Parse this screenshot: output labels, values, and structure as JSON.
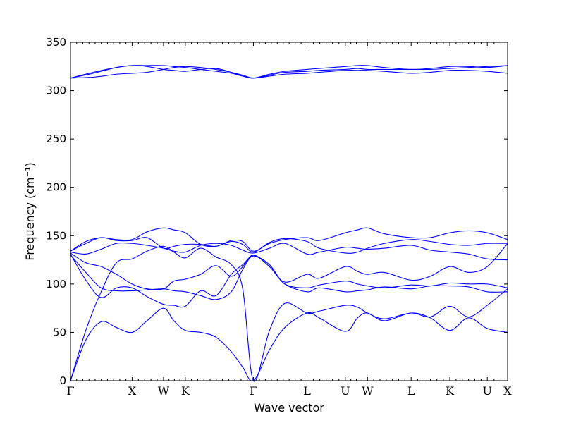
{
  "chart_data": {
    "type": "line",
    "xlabel": "Wave vector",
    "ylabel": "Frequency (cm⁻¹)",
    "ylim": [
      0,
      350
    ],
    "yticks": [
      0,
      50,
      100,
      150,
      200,
      250,
      300,
      350
    ],
    "xlim": [
      0,
      11.42
    ],
    "kpoints": [
      {
        "label": "Γ",
        "x": 0
      },
      {
        "label": "X",
        "x": 1.61
      },
      {
        "label": "W",
        "x": 2.43
      },
      {
        "label": "K",
        "x": 3.0
      },
      {
        "label": "Γ",
        "x": 4.78
      },
      {
        "label": "L",
        "x": 6.18
      },
      {
        "label": "U",
        "x": 7.18
      },
      {
        "label": "W",
        "x": 7.76
      },
      {
        "label": "L",
        "x": 8.9
      },
      {
        "label": "K",
        "x": 9.91
      },
      {
        "label": "U",
        "x": 10.89
      },
      {
        "label": "X",
        "x": 11.42
      }
    ],
    "grid": false,
    "legend": "none",
    "line_color": "#0000ff",
    "series": [
      {
        "x": [
          0,
          0.4,
          0.8,
          1.2,
          1.61,
          2.0,
          2.43,
          2.7,
          3.0,
          3.4,
          3.8,
          4.2,
          4.5,
          4.78,
          5.2,
          5.6,
          6.18,
          6.5,
          7.18,
          7.5,
          7.76,
          8.2,
          8.9,
          9.4,
          9.91,
          10.4,
          10.89,
          11.42
        ],
        "y": [
          0,
          42,
          61,
          55,
          50,
          62,
          75,
          62,
          52,
          50,
          45,
          30,
          14,
          0,
          32,
          55,
          70,
          65,
          51,
          65,
          70,
          62,
          70,
          65,
          52,
          65,
          54,
          50
        ]
      },
      {
        "x": [
          0,
          0.4,
          0.8,
          1.2,
          1.61,
          2.0,
          2.43,
          2.7,
          3.0,
          3.4,
          3.8,
          4.2,
          4.5,
          4.78,
          5.2,
          5.6,
          6.18,
          6.5,
          7.18,
          7.5,
          7.76,
          8.2,
          8.9,
          9.4,
          9.91,
          10.4,
          10.89,
          11.42
        ],
        "y": [
          0,
          52,
          92,
          122,
          126,
          134,
          139,
          133,
          127,
          137,
          128,
          120,
          95,
          0,
          52,
          80,
          70,
          72,
          78,
          76,
          70,
          64,
          70,
          66,
          77,
          66,
          78,
          95
        ]
      },
      {
        "x": [
          0,
          0.4,
          0.8,
          1.2,
          1.61,
          2.0,
          2.43,
          2.7,
          3.0,
          3.4,
          3.8,
          4.2,
          4.5,
          4.78,
          5.2,
          5.6,
          6.18,
          6.5,
          7.18,
          7.5,
          7.76,
          8.2,
          8.9,
          9.4,
          9.91,
          10.4,
          10.89,
          11.42
        ],
        "y": [
          130,
          112,
          96,
          93,
          93,
          94,
          95,
          93,
          92,
          88,
          84,
          92,
          115,
          129,
          118,
          100,
          92,
          96,
          92,
          93,
          94,
          97,
          95,
          98,
          98,
          97,
          92,
          92
        ]
      },
      {
        "x": [
          0,
          0.4,
          0.8,
          1.2,
          1.61,
          2.0,
          2.43,
          2.7,
          3.0,
          3.4,
          3.8,
          4.2,
          4.5,
          4.78,
          5.2,
          5.6,
          6.18,
          6.5,
          7.18,
          7.5,
          7.76,
          8.2,
          8.9,
          9.4,
          9.91,
          10.4,
          10.89,
          11.42
        ],
        "y": [
          131,
          104,
          86,
          96,
          96,
          87,
          79,
          78,
          77,
          93,
          88,
          110,
          120,
          129,
          120,
          100,
          96,
          99,
          103,
          100,
          98,
          96,
          99,
          98,
          101,
          100,
          100,
          96
        ]
      },
      {
        "x": [
          0,
          0.4,
          0.8,
          1.2,
          1.61,
          2.0,
          2.43,
          2.7,
          3.0,
          3.4,
          3.8,
          4.2,
          4.5,
          4.78,
          5.2,
          5.6,
          6.18,
          6.5,
          7.18,
          7.5,
          7.76,
          8.2,
          8.9,
          9.4,
          9.91,
          10.4,
          10.89,
          11.42
        ],
        "y": [
          132,
          122,
          118,
          110,
          100,
          95,
          95,
          103,
          105,
          110,
          119,
          108,
          118,
          130,
          118,
          102,
          110,
          106,
          118,
          113,
          110,
          112,
          104,
          108,
          118,
          112,
          118,
          142
        ]
      },
      {
        "x": [
          0,
          0.4,
          0.8,
          1.2,
          1.61,
          2.0,
          2.43,
          2.7,
          3.0,
          3.4,
          3.8,
          4.2,
          4.5,
          4.78,
          5.2,
          5.6,
          6.18,
          6.5,
          7.18,
          7.5,
          7.76,
          8.2,
          8.9,
          9.4,
          9.91,
          10.4,
          10.89,
          11.42
        ],
        "y": [
          133,
          131,
          136,
          142,
          142,
          140,
          137,
          134,
          133,
          140,
          142,
          140,
          135,
          132,
          137,
          142,
          131,
          133,
          138,
          137,
          136,
          137,
          140,
          135,
          133,
          131,
          126,
          125
        ]
      },
      {
        "x": [
          0,
          0.4,
          0.8,
          1.2,
          1.61,
          2.0,
          2.43,
          2.7,
          3.0,
          3.4,
          3.8,
          4.2,
          4.5,
          4.78,
          5.2,
          5.6,
          6.18,
          6.5,
          7.18,
          7.5,
          7.76,
          8.2,
          8.9,
          9.4,
          9.91,
          10.4,
          10.89,
          11.42
        ],
        "y": [
          134,
          142,
          148,
          145,
          145,
          148,
          137,
          139,
          141,
          141,
          139,
          144,
          141,
          133,
          143,
          147,
          144,
          137,
          132,
          133,
          137,
          142,
          146,
          144,
          141,
          140,
          142,
          142
        ]
      },
      {
        "x": [
          0,
          0.4,
          0.8,
          1.2,
          1.61,
          2.0,
          2.43,
          2.7,
          3.0,
          3.4,
          3.8,
          4.2,
          4.5,
          4.78,
          5.2,
          5.6,
          6.18,
          6.5,
          7.18,
          7.5,
          7.76,
          8.2,
          8.9,
          9.4,
          9.91,
          10.4,
          10.89,
          11.42
        ],
        "y": [
          134,
          144,
          148,
          146,
          146,
          154,
          158,
          156,
          153,
          141,
          139,
          145,
          144,
          134,
          142,
          146,
          148,
          145,
          153,
          156,
          158,
          152,
          148,
          148,
          153,
          155,
          153,
          146
        ]
      },
      {
        "x": [
          0,
          0.6,
          1.2,
          1.61,
          2.0,
          2.43,
          2.7,
          3.0,
          3.4,
          3.8,
          4.2,
          4.5,
          4.78,
          5.2,
          5.6,
          6.18,
          6.5,
          7.18,
          7.5,
          7.76,
          8.2,
          8.9,
          9.4,
          9.91,
          10.4,
          10.89,
          11.42
        ],
        "y": [
          313,
          318,
          324,
          326,
          326,
          326,
          325,
          324,
          322,
          320,
          318,
          315,
          313,
          316,
          319,
          320,
          321,
          322,
          323,
          322,
          322,
          322,
          322,
          323,
          324,
          325,
          326
        ]
      },
      {
        "x": [
          0,
          0.6,
          1.2,
          1.61,
          2.0,
          2.43,
          2.7,
          3.0,
          3.4,
          3.8,
          4.2,
          4.5,
          4.78,
          5.2,
          5.6,
          6.18,
          6.5,
          7.18,
          7.5,
          7.76,
          8.2,
          8.9,
          9.4,
          9.91,
          10.4,
          10.89,
          11.42
        ],
        "y": [
          313,
          319,
          324,
          326,
          325,
          322,
          321,
          320,
          322,
          323,
          319,
          315,
          313,
          317,
          320,
          322,
          323,
          325,
          326,
          326,
          324,
          322,
          323,
          325,
          325,
          324,
          326
        ]
      },
      {
        "x": [
          0,
          0.6,
          1.2,
          1.61,
          2.0,
          2.43,
          2.7,
          3.0,
          3.4,
          3.8,
          4.2,
          4.5,
          4.78,
          5.2,
          5.6,
          6.18,
          6.5,
          7.18,
          7.5,
          7.76,
          8.2,
          8.9,
          9.4,
          9.91,
          10.4,
          10.89,
          11.42
        ],
        "y": [
          313,
          314,
          317,
          318,
          319,
          322,
          324,
          325,
          324,
          322,
          319,
          316,
          313,
          315,
          317,
          318,
          319,
          321,
          321,
          321,
          320,
          318,
          319,
          321,
          321,
          320,
          318
        ]
      }
    ]
  }
}
